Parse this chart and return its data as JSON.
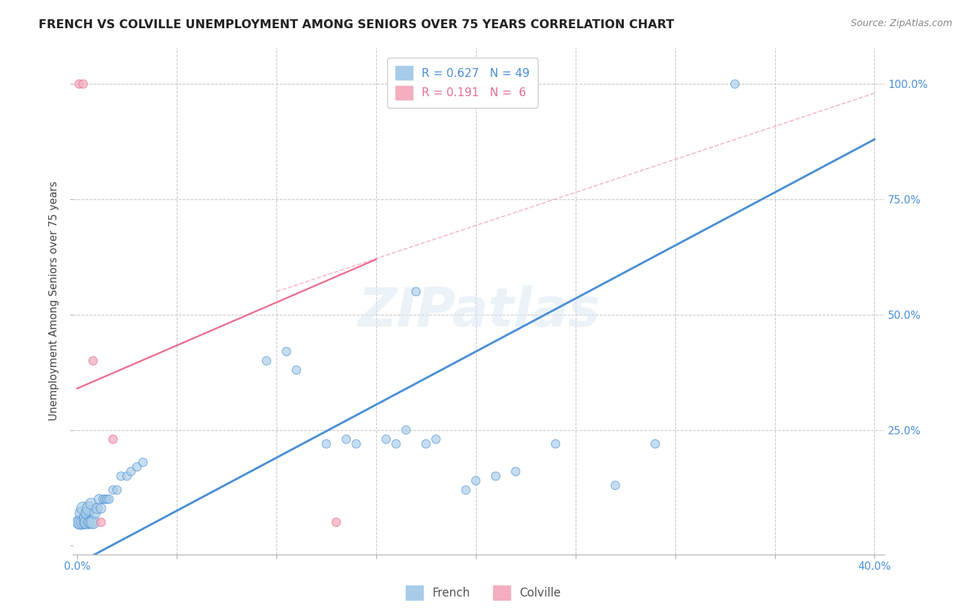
{
  "title": "FRENCH VS COLVILLE UNEMPLOYMENT AMONG SENIORS OVER 75 YEARS CORRELATION CHART",
  "source": "Source: ZipAtlas.com",
  "ylabel": "Unemployment Among Seniors over 75 years",
  "xlim": [
    -0.002,
    0.405
  ],
  "ylim": [
    -0.02,
    1.08
  ],
  "xtick_positions": [
    0.0,
    0.05,
    0.1,
    0.15,
    0.2,
    0.25,
    0.3,
    0.35,
    0.4
  ],
  "xticklabels": [
    "0.0%",
    "",
    "",
    "",
    "",
    "",
    "",
    "",
    "40.0%"
  ],
  "xgrid_positions": [
    0.05,
    0.1,
    0.15,
    0.2,
    0.25,
    0.3,
    0.35,
    0.4
  ],
  "ytick_positions": [
    0.0,
    0.25,
    0.5,
    0.75,
    1.0
  ],
  "yticklabels_right": [
    "",
    "25.0%",
    "50.0%",
    "75.0%",
    "100.0%"
  ],
  "french_R": 0.627,
  "french_N": 49,
  "colville_R": 0.191,
  "colville_N": 6,
  "french_color": "#a8cce8",
  "colville_color": "#f4aec0",
  "french_line_color": "#4a8fd4",
  "colville_line_color": "#e87090",
  "watermark": "ZIPatlas",
  "french_x": [
    0.001,
    0.002,
    0.002,
    0.003,
    0.003,
    0.004,
    0.004,
    0.005,
    0.005,
    0.006,
    0.006,
    0.007,
    0.007,
    0.008,
    0.009,
    0.01,
    0.011,
    0.012,
    0.013,
    0.014,
    0.015,
    0.016,
    0.018,
    0.02,
    0.022,
    0.025,
    0.027,
    0.03,
    0.033,
    0.095,
    0.105,
    0.11,
    0.125,
    0.135,
    0.14,
    0.155,
    0.16,
    0.165,
    0.17,
    0.175,
    0.18,
    0.195,
    0.2,
    0.21,
    0.22,
    0.24,
    0.27,
    0.29,
    0.33
  ],
  "french_y": [
    0.05,
    0.05,
    0.07,
    0.05,
    0.08,
    0.05,
    0.06,
    0.05,
    0.07,
    0.05,
    0.08,
    0.05,
    0.09,
    0.05,
    0.07,
    0.08,
    0.1,
    0.08,
    0.1,
    0.1,
    0.1,
    0.1,
    0.12,
    0.12,
    0.15,
    0.15,
    0.16,
    0.17,
    0.18,
    0.4,
    0.42,
    0.38,
    0.22,
    0.23,
    0.22,
    0.23,
    0.22,
    0.25,
    0.55,
    0.22,
    0.23,
    0.12,
    0.14,
    0.15,
    0.16,
    0.22,
    0.13,
    0.22,
    1.0
  ],
  "french_sizes": [
    200,
    220,
    160,
    200,
    180,
    160,
    140,
    200,
    160,
    140,
    200,
    160,
    140,
    180,
    120,
    120,
    100,
    100,
    80,
    80,
    80,
    80,
    80,
    80,
    80,
    80,
    80,
    80,
    80,
    80,
    80,
    80,
    80,
    80,
    80,
    80,
    80,
    80,
    80,
    80,
    80,
    80,
    80,
    80,
    80,
    80,
    80,
    80,
    80
  ],
  "colville_x": [
    0.001,
    0.003,
    0.008,
    0.012,
    0.018,
    0.13
  ],
  "colville_y": [
    1.0,
    1.0,
    0.4,
    0.05,
    0.23,
    0.05
  ],
  "colville_sizes": [
    80,
    80,
    80,
    80,
    80,
    80
  ],
  "french_trend_x": [
    0.0,
    0.4
  ],
  "french_trend_y": [
    -0.04,
    0.88
  ],
  "colville_trend_x": [
    0.0,
    0.15
  ],
  "colville_trend_y": [
    0.34,
    0.62
  ]
}
